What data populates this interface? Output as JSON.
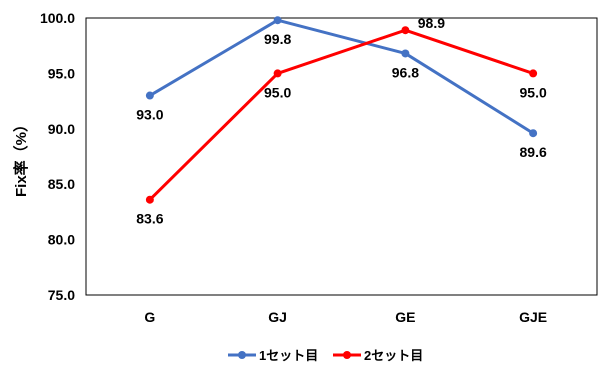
{
  "chart_data": {
    "type": "line",
    "categories": [
      "G",
      "GJ",
      "GE",
      "GJE"
    ],
    "series": [
      {
        "name": "1セット目",
        "values": [
          93.0,
          99.8,
          96.8,
          89.6
        ],
        "color": "#4472C4",
        "labels": [
          "93.0",
          "99.8",
          "96.8",
          "89.6"
        ]
      },
      {
        "name": "2セット目",
        "values": [
          83.6,
          95.0,
          98.9,
          95.0
        ],
        "color": "#FF0000",
        "labels": [
          "83.6",
          "95.0",
          "98.9",
          "95.0"
        ]
      }
    ],
    "ylabel": "Fix率（%）",
    "xlabel": "",
    "ylim": [
      75.0,
      100.0
    ],
    "yticks": [
      "75.0",
      "80.0",
      "85.0",
      "90.0",
      "95.0",
      "100.0"
    ],
    "grid": false,
    "legend_position": "bottom"
  }
}
